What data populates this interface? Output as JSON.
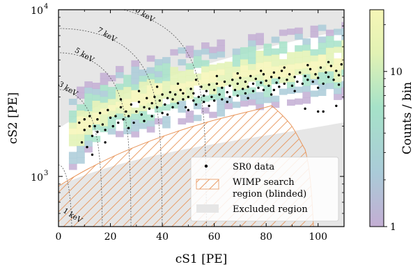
{
  "chart_data": {
    "type": "heatmap",
    "xlabel": "cS1 [PE]",
    "ylabel": "cS2 [PE]",
    "xlim": [
      0,
      110
    ],
    "ylim": [
      500,
      10000
    ],
    "yscale": "log",
    "x_ticks": [
      0,
      20,
      40,
      60,
      80,
      100
    ],
    "y_ticks": [
      {
        "value": 1000,
        "base": "10",
        "exp": "3"
      },
      {
        "value": 10000,
        "base": "10",
        "exp": "4"
      }
    ],
    "colorbar": {
      "label": "Counts / bin",
      "scale": "log",
      "range": [
        1,
        25
      ],
      "ticks": [
        {
          "value": 1,
          "label": "1"
        },
        {
          "value": 10,
          "label": "10"
        }
      ],
      "colors": [
        "#c3aed3",
        "#aacbd8",
        "#a6e2c8",
        "#e2f2b4",
        "#f6f6b6"
      ]
    },
    "energy_contours": [
      {
        "label": "3 keV",
        "s1": 17,
        "s2": 3200
      },
      {
        "label": "5 keV",
        "s1": 28,
        "s2": 5400
      },
      {
        "label": "7 keV",
        "s1": 40,
        "s2": 7600
      },
      {
        "label": "10 keV",
        "s1": 57,
        "s2": 11000
      },
      {
        "label": "1 keV",
        "s1": 5.5,
        "s2": 1050
      }
    ],
    "legend": {
      "position": "lower-right",
      "entries": [
        {
          "label": "SR0 data",
          "kind": "point"
        },
        {
          "label": "WIMP search",
          "label2": "region (blinded)",
          "kind": "hatch"
        },
        {
          "label": "Excluded region",
          "kind": "fill"
        }
      ]
    },
    "points": [
      [
        8,
        2100
      ],
      [
        9,
        1600
      ],
      [
        10,
        1900
      ],
      [
        10,
        2200
      ],
      [
        11,
        1500
      ],
      [
        12,
        2000
      ],
      [
        12,
        2300
      ],
      [
        13,
        1750
      ],
      [
        14,
        2000
      ],
      [
        15,
        2200
      ],
      [
        15,
        1850
      ],
      [
        16,
        2400
      ],
      [
        17,
        2050
      ],
      [
        18,
        1900
      ],
      [
        19,
        2500
      ],
      [
        20,
        2250
      ],
      [
        21,
        2000
      ],
      [
        22,
        2300
      ],
      [
        23,
        2100
      ],
      [
        24,
        2600
      ],
      [
        25,
        2200
      ],
      [
        26,
        2450
      ],
      [
        27,
        2300
      ],
      [
        28,
        2700
      ],
      [
        29,
        2100
      ],
      [
        30,
        2450
      ],
      [
        31,
        2800
      ],
      [
        32,
        2350
      ],
      [
        33,
        2600
      ],
      [
        34,
        2950
      ],
      [
        35,
        2550
      ],
      [
        36,
        2300
      ],
      [
        36,
        2750
      ],
      [
        37,
        3000
      ],
      [
        38,
        2600
      ],
      [
        39,
        2850
      ],
      [
        40,
        2400
      ],
      [
        40,
        3100
      ],
      [
        41,
        2700
      ],
      [
        42,
        2950
      ],
      [
        43,
        3200
      ],
      [
        44,
        2600
      ],
      [
        44,
        2900
      ],
      [
        45,
        3100
      ],
      [
        46,
        2750
      ],
      [
        47,
        3300
      ],
      [
        48,
        2900
      ],
      [
        48,
        3150
      ],
      [
        49,
        2600
      ],
      [
        50,
        3000
      ],
      [
        51,
        3350
      ],
      [
        52,
        2850
      ],
      [
        52,
        3150
      ],
      [
        53,
        2700
      ],
      [
        54,
        3000
      ],
      [
        55,
        3450
      ],
      [
        56,
        3050
      ],
      [
        56,
        2800
      ],
      [
        57,
        3250
      ],
      [
        58,
        3550
      ],
      [
        59,
        3000
      ],
      [
        60,
        2850
      ],
      [
        60,
        3300
      ],
      [
        61,
        3600
      ],
      [
        62,
        3100
      ],
      [
        63,
        2900
      ],
      [
        63,
        3400
      ],
      [
        64,
        3700
      ],
      [
        65,
        3200
      ],
      [
        66,
        3000
      ],
      [
        66,
        3500
      ],
      [
        67,
        3800
      ],
      [
        68,
        3300
      ],
      [
        69,
        3050
      ],
      [
        69,
        3600
      ],
      [
        70,
        3900
      ],
      [
        71,
        3350
      ],
      [
        72,
        3150
      ],
      [
        72,
        3700
      ],
      [
        73,
        3450
      ],
      [
        74,
        4000
      ],
      [
        75,
        3250
      ],
      [
        75,
        3600
      ],
      [
        76,
        3850
      ],
      [
        77,
        3400
      ],
      [
        78,
        3650
      ],
      [
        79,
        4100
      ],
      [
        79,
        3300
      ],
      [
        80,
        3750
      ],
      [
        81,
        3500
      ],
      [
        82,
        3950
      ],
      [
        83,
        3300
      ],
      [
        83,
        4200
      ],
      [
        84,
        3650
      ],
      [
        85,
        3450
      ],
      [
        85,
        3900
      ],
      [
        86,
        4300
      ],
      [
        87,
        3600
      ],
      [
        88,
        3800
      ],
      [
        89,
        4100
      ],
      [
        90,
        3500
      ],
      [
        91,
        3950
      ],
      [
        92,
        3700
      ],
      [
        93,
        4200
      ],
      [
        94,
        3600
      ],
      [
        95,
        4000
      ],
      [
        96,
        3800
      ],
      [
        97,
        4400
      ],
      [
        98,
        3700
      ],
      [
        99,
        4100
      ],
      [
        100,
        3900
      ],
      [
        101,
        4500
      ],
      [
        102,
        3600
      ],
      [
        103,
        4200
      ],
      [
        104,
        3950
      ],
      [
        105,
        4600
      ],
      [
        106,
        3800
      ],
      [
        107,
        4300
      ],
      [
        108,
        4050
      ],
      [
        109,
        4700
      ],
      [
        13,
        1350
      ],
      [
        18,
        1600
      ],
      [
        27,
        1950
      ],
      [
        33,
        2150
      ],
      [
        42,
        2350
      ],
      [
        50,
        2500
      ],
      [
        58,
        2650
      ],
      [
        65,
        2800
      ],
      [
        73,
        2950
      ],
      [
        82,
        3100
      ],
      [
        91,
        3250
      ],
      [
        100,
        3400
      ],
      [
        108,
        3550
      ],
      [
        24,
        2900
      ],
      [
        31,
        3250
      ],
      [
        38,
        3450
      ],
      [
        46,
        3600
      ],
      [
        53,
        3800
      ],
      [
        61,
        4000
      ],
      [
        69,
        4150
      ],
      [
        78,
        4300
      ],
      [
        87,
        4500
      ],
      [
        96,
        4650
      ],
      [
        104,
        4850
      ],
      [
        100,
        2450
      ],
      [
        102,
        2450
      ],
      [
        107,
        2650
      ],
      [
        95,
        2550
      ]
    ]
  }
}
